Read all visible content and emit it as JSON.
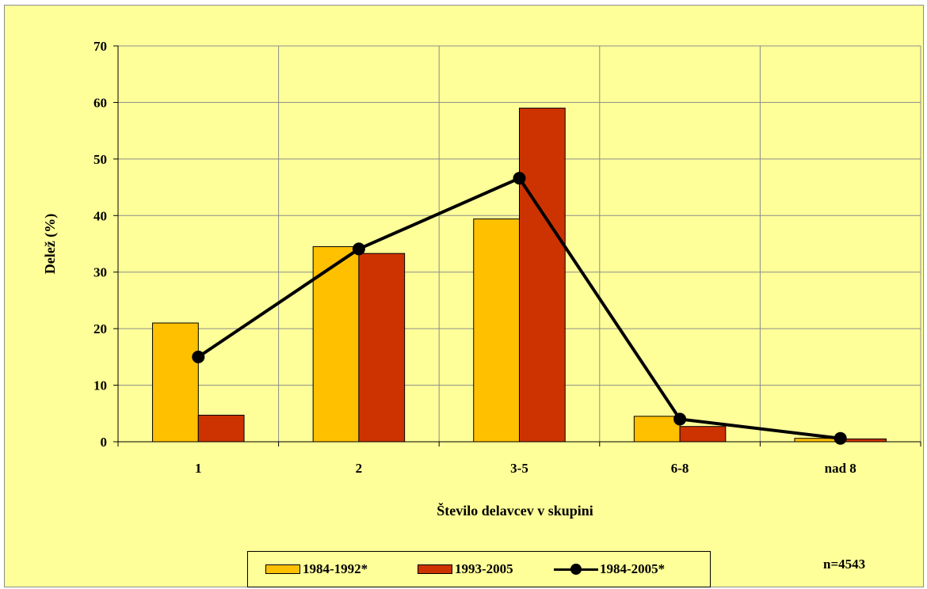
{
  "chart_data": {
    "type": "bar",
    "categories": [
      "1",
      "2",
      "3-5",
      "6-8",
      "nad 8"
    ],
    "series": [
      {
        "name": "1984-1992*",
        "type": "bar",
        "color": "#FFC000",
        "values": [
          21.0,
          34.5,
          39.4,
          4.5,
          0.6
        ]
      },
      {
        "name": "1993-2005",
        "type": "bar",
        "color": "#CC3300",
        "values": [
          4.7,
          33.3,
          59.0,
          2.7,
          0.5
        ]
      },
      {
        "name": "1984-2005*",
        "type": "line",
        "color": "#000000",
        "values": [
          15.0,
          34.1,
          46.6,
          4.0,
          0.6
        ]
      }
    ],
    "title": "",
    "xlabel": "Število delavcev v skupini",
    "ylabel": "Delež (%)",
    "ylim": [
      0,
      70
    ],
    "yticks": [
      0,
      10,
      20,
      30,
      40,
      50,
      60,
      70
    ],
    "grid": true,
    "legend_position": "bottom",
    "background_color": "#FFFF99"
  },
  "annotation": "n=4543"
}
